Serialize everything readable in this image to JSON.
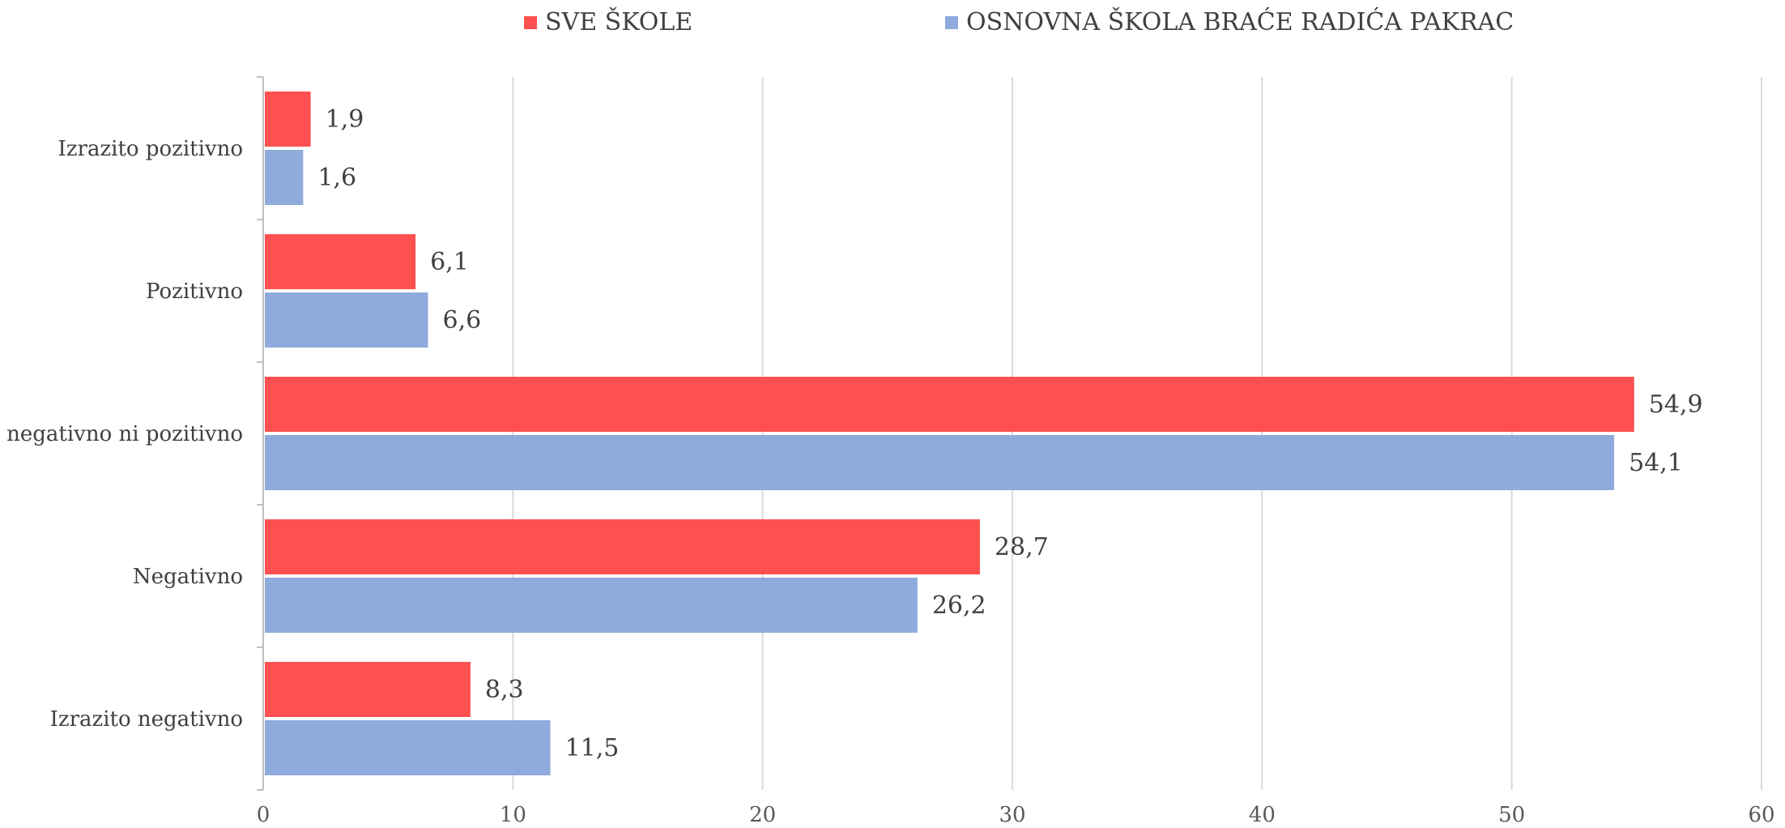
{
  "chart_data": {
    "type": "bar",
    "orientation": "horizontal",
    "title": "",
    "xlabel": "",
    "ylabel": "",
    "categories": [
      "Izrazito pozitivno",
      "Pozitivno",
      "Ni negativno ni pozitivno",
      "Negativno",
      "Izrazito negativno"
    ],
    "series": [
      {
        "name": "SVE ŠKOLE",
        "color": "#FF5050",
        "values": [
          1.9,
          6.1,
          54.9,
          28.7,
          8.3
        ],
        "labels": [
          "1,9",
          "6,1",
          "54,9",
          "28,7",
          "8,3"
        ]
      },
      {
        "name": "OSNOVNA ŠKOLA BRAĆE RADIĆA PAKRAC",
        "color": "#8FAADC",
        "values": [
          1.6,
          6.6,
          54.1,
          26.2,
          11.5
        ],
        "labels": [
          "1,6",
          "6,6",
          "54,1",
          "26,2",
          "11,5"
        ]
      }
    ],
    "xlim": [
      0,
      60
    ],
    "xticks": [
      "0",
      "10",
      "20",
      "30",
      "40",
      "50",
      "60"
    ],
    "grid": true,
    "legend": "top-center"
  }
}
